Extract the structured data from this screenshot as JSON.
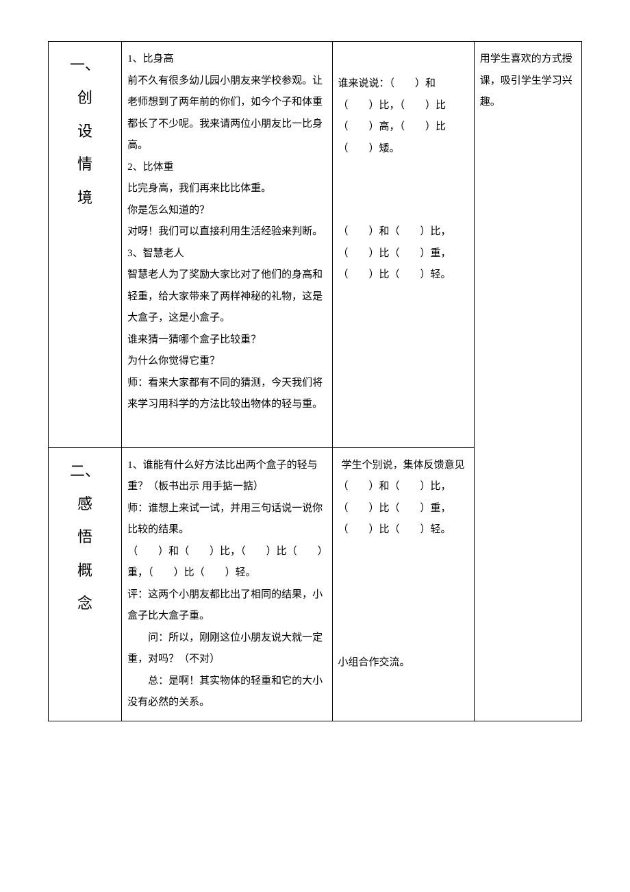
{
  "row1": {
    "col1": {
      "l1": "一、",
      "l2": "创",
      "l3": "设",
      "l4": "情",
      "l5": "境"
    },
    "col2": {
      "p1": "1、比身高",
      "p2": "前不久有很多幼儿园小朋友来学校参观。让老师想到了两年前的你们，如今个子和体重都长了不少呢。我来请两位小朋友比一比身高。",
      "p3": "2、比体重",
      "p4": "比完身高，我们再来比比体重。",
      "p5": "你是怎么知道的？",
      "p6": "对呀！我们可以直接利用生活经验来判断。",
      "p7": "3、智慧老人",
      "p8": "智慧老人为了奖励大家比对了他们的身高和轻重，给大家带来了两样神秘的礼物，这是大盒子，这是小盒子。",
      "p9": "谁来猜一猜哪个盒子比较重？",
      "p10": "为什么你觉得它重？",
      "p11": "师：看来大家都有不同的猜测，今天我们将来学习用科学的方法比较出物体的轻与重。"
    },
    "col3": {
      "a1": "谁来说说：（　　）和（　　）比，（　　）比（　　）高，（　　）比（　　）矮。",
      "a2": "（　　）和（　　）比，（　　）比（　　）重，（　　）比（　　）轻。"
    },
    "col4": {
      "n1": "用学生喜欢的方式授课，吸引学生学习兴趣。"
    }
  },
  "row2": {
    "col1": {
      "l1": "二、",
      "l2": "感",
      "l3": "悟",
      "l4": "概",
      "l5": "念"
    },
    "col2": {
      "p1": "1、谁能有什么好方法比出两个盒子的轻与重？（板书出示 用手掂一掂）",
      "p2": "师：谁想上来试一试，并用三句话说一说你比较的结果。",
      "p3": "（　　）和（　　）比，（　　）比（　　）重，（　　）比（　　）轻。",
      "p4": "评：这两个小朋友都比出了相同的结果，小盒子比大盒子重。",
      "p5": "问：所以，刚刚这位小朋友说大就一定重，对吗？（不对）",
      "p6": "总：是啊！其实物体的轻重和它的大小没有必然的关系。"
    },
    "col3": {
      "a1": "学生个别说，集体反馈意见",
      "a2": "（　　）和（　　）比，（　　）比（　　）重，（　　）比（　　）轻。",
      "a3": "小组合作交流。"
    }
  }
}
